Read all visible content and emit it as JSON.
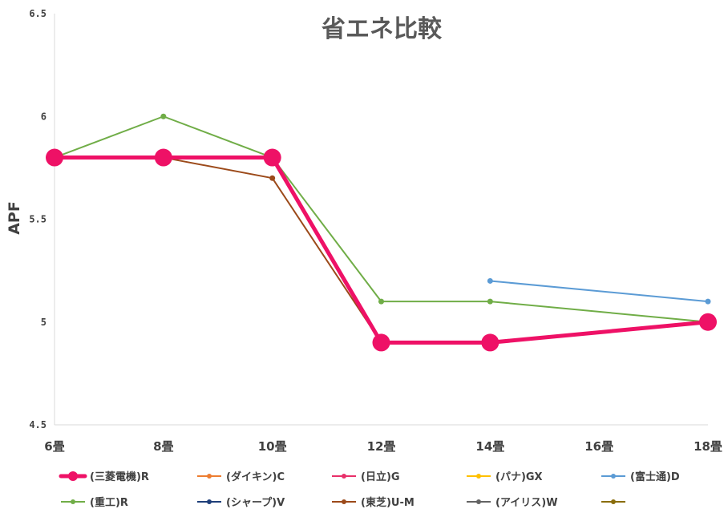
{
  "chart_data": {
    "type": "line",
    "title": "省エネ比較",
    "xlabel": "",
    "ylabel": "APF",
    "categories": [
      "6畳",
      "8畳",
      "10畳",
      "12畳",
      "14畳",
      "16畳",
      "18畳"
    ],
    "ylim": [
      4.5,
      6.5
    ],
    "yticks": [
      "4.5",
      "5",
      "5.5",
      "6",
      "6.5"
    ],
    "grid": "vertical-left-axis-only",
    "legend_position": "bottom",
    "series": [
      {
        "name": "(三菱電機)R",
        "color": "#ee1166",
        "values": [
          5.8,
          5.8,
          5.8,
          4.9,
          4.9,
          null,
          5.0
        ]
      },
      {
        "name": "(ダイキン)C",
        "color": "#ed7d31",
        "values": [
          5.8,
          5.8,
          5.8,
          4.9,
          4.9,
          null,
          5.0
        ]
      },
      {
        "name": "(日立)G",
        "color": "#e8306a",
        "values": [
          5.8,
          5.8,
          5.8,
          4.9,
          4.9,
          null,
          5.0
        ]
      },
      {
        "name": "(パナ)GX",
        "color": "#ffc000",
        "values": [
          5.8,
          5.8,
          5.8,
          4.9,
          4.9,
          null,
          5.0
        ]
      },
      {
        "name": "(富士通)D",
        "color": "#5b9bd5",
        "values": [
          null,
          null,
          null,
          null,
          5.2,
          null,
          5.1
        ]
      },
      {
        "name": "(重工)R",
        "color": "#70ad47",
        "values": [
          5.8,
          6.0,
          5.8,
          5.1,
          5.1,
          null,
          5.0
        ]
      },
      {
        "name": "(シャープ)V",
        "color": "#1f3f7a",
        "values": [
          5.8,
          5.8,
          5.8,
          4.9,
          4.9,
          null,
          5.0
        ]
      },
      {
        "name": "(東芝)U-M",
        "color": "#9c4a1a",
        "values": [
          5.8,
          5.8,
          5.7,
          4.9,
          4.9,
          null,
          5.0
        ]
      },
      {
        "name": "(アイリス)W",
        "color": "#636363",
        "values": [
          5.8,
          5.8,
          5.8,
          4.9,
          4.9,
          null,
          5.0
        ]
      },
      {
        "name": "",
        "color": "#8a6d0b",
        "values": [
          5.8,
          5.8,
          5.8,
          4.9,
          4.9,
          null,
          5.0
        ]
      }
    ]
  }
}
